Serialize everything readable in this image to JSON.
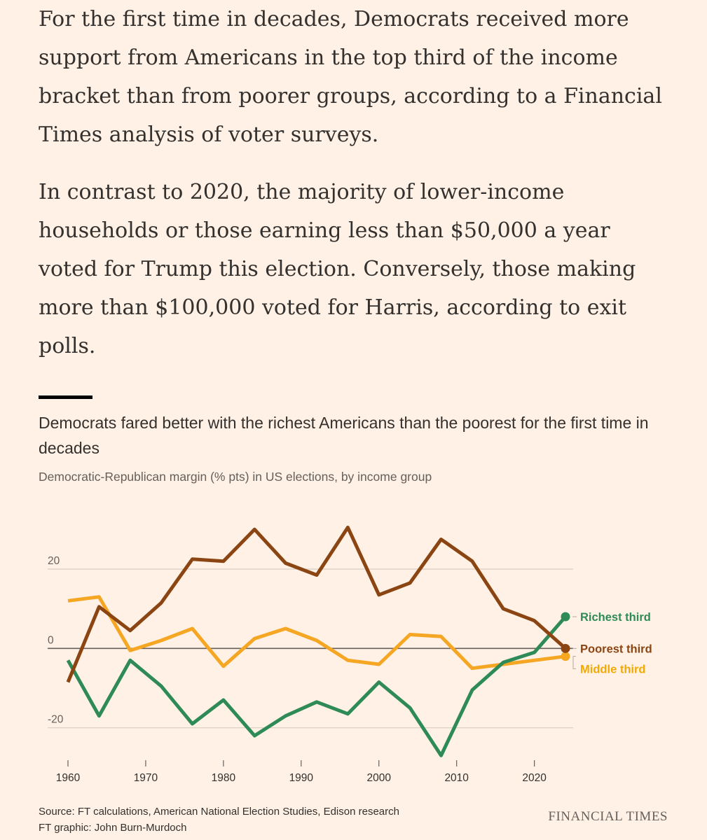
{
  "article": {
    "paragraphs": [
      "For the first time in decades, Democrats received more support from Americans in the top third of the income bracket than from poorer groups, according to a Financial Times analysis of voter surveys.",
      "In contrast to 2020, the majority of lower-income households or those earning less than $50,000 a year voted for Trump this election. Conversely, those making more than $100,000 voted for Harris, according to exit polls."
    ]
  },
  "chart_data": {
    "type": "line",
    "title": "Democrats fared better with the richest Americans than the poorest for the first time in decades",
    "subtitle": "Democratic-Republican margin (% pts) in US elections, by income group",
    "xlabel": "",
    "ylabel": "",
    "xlim": [
      1960,
      2024
    ],
    "ylim": [
      -28,
      32
    ],
    "x_ticks": [
      1960,
      1970,
      1980,
      1990,
      2000,
      2010,
      2020
    ],
    "y_ticks": [
      -20,
      0,
      20
    ],
    "x_tick_labels": [
      "1960",
      "1970",
      "1980",
      "1990",
      "2000",
      "2010",
      "2020"
    ],
    "y_tick_labels": [
      "-20",
      "0",
      "20"
    ],
    "grid": true,
    "legend": "direct labels at line ends, right",
    "x": [
      1960,
      1964,
      1968,
      1972,
      1976,
      1980,
      1984,
      1988,
      1992,
      1996,
      2000,
      2004,
      2008,
      2012,
      2016,
      2020,
      2024
    ],
    "series": [
      {
        "name": "Richest third",
        "color": "#2e8b57",
        "values": [
          -3,
          -17,
          -3,
          -9.5,
          -19,
          -13,
          -22,
          -17,
          -13.5,
          -16.5,
          -8.5,
          -15,
          -27,
          -10.5,
          -3.5,
          -1,
          8
        ]
      },
      {
        "name": "Poorest third",
        "color": "#8b4513",
        "values": [
          -8.5,
          10.5,
          4.5,
          11.5,
          22.5,
          22,
          30,
          21.5,
          18.5,
          30.5,
          13.5,
          16.5,
          27.5,
          22,
          10,
          7,
          0
        ]
      },
      {
        "name": "Middle third",
        "color": "#f5a623",
        "values": [
          12,
          13,
          -0.5,
          2,
          5,
          -4.5,
          2.5,
          5,
          2,
          -3,
          -4,
          3.5,
          3,
          -5,
          -4,
          -3,
          -2
        ]
      }
    ]
  },
  "footer": {
    "source": "Source: FT calculations, American National Election Studies, Edison research",
    "graphic": "FT graphic: John Burn-Murdoch",
    "brand": "FINANCIAL TIMES"
  }
}
